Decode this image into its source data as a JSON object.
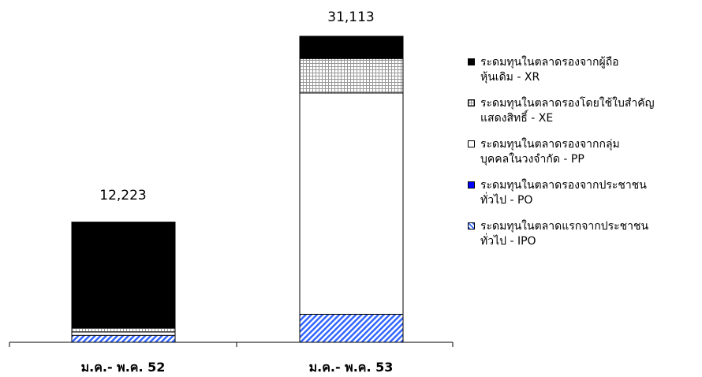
{
  "chart_data": {
    "type": "bar",
    "stacked": true,
    "categories": [
      "ม.ค.- พ.ค. 52",
      "ม.ค.- พ.ค. 53"
    ],
    "totals": [
      "12,223",
      "31,113"
    ],
    "series": [
      {
        "name": "ระดมทุนในตลาดแรกจากประชาชนทั่วไป - IPO",
        "values": [
          700,
          2850
        ],
        "color": "#3366ff",
        "pattern": "diagonal-stripes"
      },
      {
        "name": "ระดมทุนในตลาดรองจากประชาชนทั่วไป - PO",
        "values": [
          0,
          0
        ],
        "color": "#0000ff",
        "pattern": "solid"
      },
      {
        "name": "ระดมทุนในตลาดรองจากกลุ่มบุคคลในวงจำกัด - PP",
        "values": [
          350,
          22500
        ],
        "color": "#ffffff",
        "pattern": "solid"
      },
      {
        "name": "ระดมทุนในตลาดรองโดยใช้ใบสำคัญแสดงสิทธิ์ - XE",
        "values": [
          400,
          3500
        ],
        "color": "#bbbbbb",
        "pattern": "grid"
      },
      {
        "name": "ระดมทุนในตลาดรองจากผู้ถือหุ้นเดิม - XR",
        "values": [
          10773,
          2263
        ],
        "color": "#000000",
        "pattern": "solid"
      }
    ],
    "ylim": [
      0,
      34000
    ],
    "legend_position": "right",
    "grid": false
  },
  "legend": {
    "items": [
      {
        "line1": "ระดมทุนในตลาดรองจากผู้ถือ",
        "line2": "หุ้นเดิม - XR",
        "swatch": "xr"
      },
      {
        "line1": "ระดมทุนในตลาดรองโดยใช้ใบสำคัญ",
        "line2": "แสดงสิทธิ์ - XE",
        "swatch": "xe"
      },
      {
        "line1": "ระดมทุนในตลาดรองจากกลุ่ม",
        "line2": "บุคคลในวงจำกัด - PP",
        "swatch": "pp"
      },
      {
        "line1": "ระดมทุนในตลาดรองจากประชาชน",
        "line2": "ทั่วไป - PO",
        "swatch": "po"
      },
      {
        "line1": "ระดมทุนในตลาดแรกจากประชาชน",
        "line2": "ทั่วไป - IPO",
        "swatch": "ipo"
      }
    ]
  }
}
